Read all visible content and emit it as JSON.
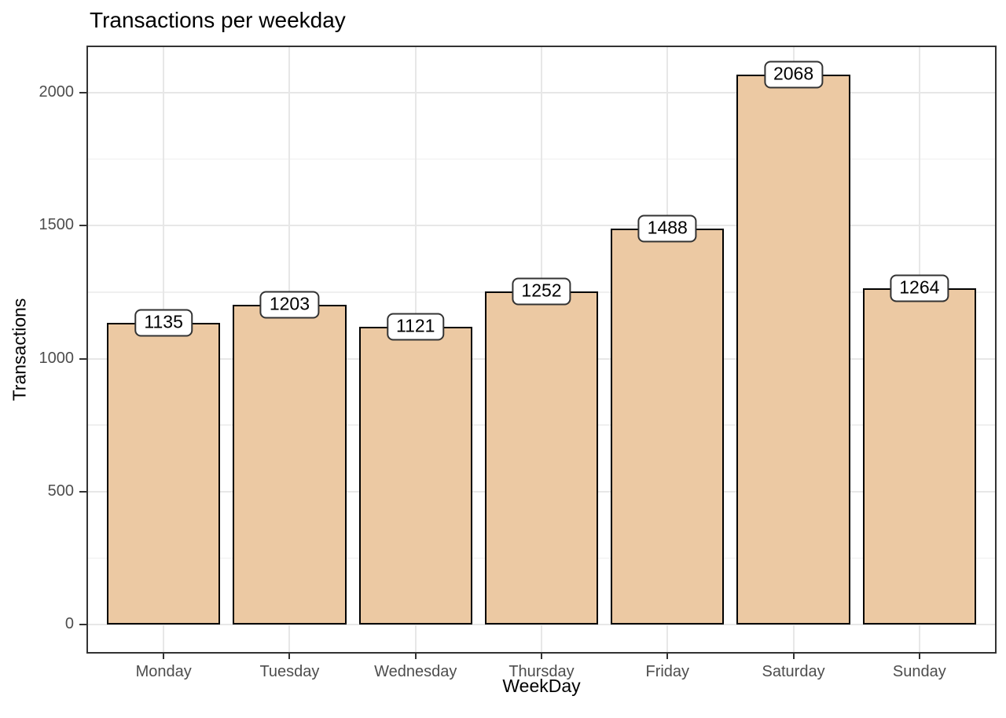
{
  "chart_data": {
    "type": "bar",
    "title": "Transactions per weekday",
    "xlabel": "WeekDay",
    "ylabel": "Transactions",
    "categories": [
      "Monday",
      "Tuesday",
      "Wednesday",
      "Thursday",
      "Friday",
      "Saturday",
      "Sunday"
    ],
    "values": [
      1135,
      1203,
      1121,
      1252,
      1488,
      2068,
      1264
    ],
    "yticks": [
      0,
      500,
      1000,
      1500,
      2000
    ],
    "yticks_minor": [
      250,
      750,
      1250,
      1750
    ],
    "ylim": [
      0,
      2171
    ],
    "grid": "on",
    "legend": "none",
    "colors": {
      "bar_fill": "#ECC9A3",
      "bar_stroke": "#000000",
      "label_bg": "#FFFFFF",
      "label_stroke": "#333333",
      "label_text": "#000000",
      "grid_major": "#E7E7E7",
      "grid_minor": "#EFEFEF",
      "axis_text": "#4D4D4D",
      "axis_line": "#333333",
      "title_text": "#000000"
    }
  }
}
